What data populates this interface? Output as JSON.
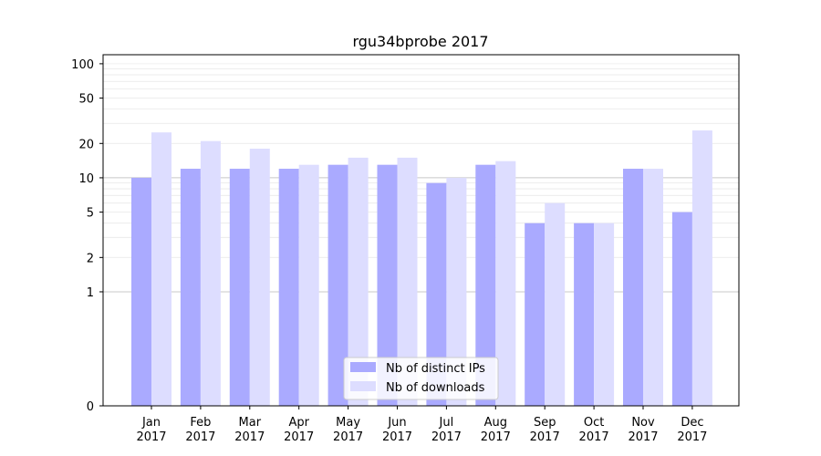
{
  "chart_data": {
    "type": "bar",
    "title": "rgu34bprobe 2017",
    "xlabel": "",
    "ylabel": "",
    "scale": "symlog",
    "ylim": [
      0,
      120
    ],
    "grid": true,
    "legend_position": "bottom-center",
    "categories": [
      {
        "month": "Jan",
        "year": "2017"
      },
      {
        "month": "Feb",
        "year": "2017"
      },
      {
        "month": "Mar",
        "year": "2017"
      },
      {
        "month": "Apr",
        "year": "2017"
      },
      {
        "month": "May",
        "year": "2017"
      },
      {
        "month": "Jun",
        "year": "2017"
      },
      {
        "month": "Jul",
        "year": "2017"
      },
      {
        "month": "Aug",
        "year": "2017"
      },
      {
        "month": "Sep",
        "year": "2017"
      },
      {
        "month": "Oct",
        "year": "2017"
      },
      {
        "month": "Nov",
        "year": "2017"
      },
      {
        "month": "Dec",
        "year": "2017"
      }
    ],
    "y_ticks": [
      {
        "value": 0,
        "label": "0"
      },
      {
        "value": 1,
        "label": "1"
      },
      {
        "value": 2,
        "label": "2"
      },
      {
        "value": 5,
        "label": "5"
      },
      {
        "value": 10,
        "label": "10"
      },
      {
        "value": 20,
        "label": "20"
      },
      {
        "value": 50,
        "label": "50"
      },
      {
        "value": 100,
        "label": "100"
      }
    ],
    "series": [
      {
        "name": "Nb of distinct IPs",
        "color": "#aaaaff",
        "values": [
          10,
          12,
          12,
          12,
          13,
          13,
          9,
          13,
          4,
          4,
          12,
          5
        ]
      },
      {
        "name": "Nb of downloads",
        "color": "#ddddff",
        "values": [
          25,
          21,
          18,
          13,
          15,
          15,
          10,
          14,
          6,
          4,
          12,
          26
        ]
      }
    ]
  }
}
